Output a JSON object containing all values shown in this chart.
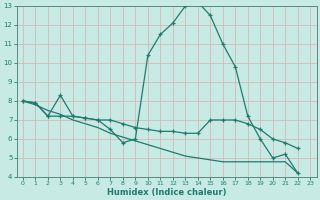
{
  "xlabel": "Humidex (Indice chaleur)",
  "xlim": [
    -0.5,
    23.5
  ],
  "ylim": [
    4,
    13
  ],
  "xticks": [
    0,
    1,
    2,
    3,
    4,
    5,
    6,
    7,
    8,
    9,
    10,
    11,
    12,
    13,
    14,
    15,
    16,
    17,
    18,
    19,
    20,
    21,
    22,
    23
  ],
  "yticks": [
    4,
    5,
    6,
    7,
    8,
    9,
    10,
    11,
    12,
    13
  ],
  "bg_color": "#c8eae4",
  "line_color": "#1e7b6e",
  "grid_color": "#d4b8b8",
  "spine_color": "#5a8a80",
  "line1_x": [
    0,
    1,
    2,
    3,
    4,
    5,
    6,
    7,
    8,
    9,
    10,
    11,
    12,
    13,
    14,
    15,
    16,
    17,
    18,
    19,
    20,
    21,
    22
  ],
  "line1_y": [
    8.0,
    7.9,
    7.2,
    8.3,
    7.2,
    7.1,
    7.0,
    6.5,
    5.8,
    6.0,
    10.4,
    11.5,
    12.1,
    13.0,
    13.2,
    12.5,
    11.0,
    9.8,
    7.2,
    6.0,
    5.0,
    5.2,
    4.2
  ],
  "line2_x": [
    0,
    1,
    2,
    3,
    4,
    5,
    6,
    7,
    8,
    9,
    10,
    11,
    12,
    13,
    14,
    15,
    16,
    17,
    18,
    19,
    20,
    21,
    22
  ],
  "line2_y": [
    8.0,
    7.9,
    7.2,
    7.2,
    7.2,
    7.1,
    7.0,
    7.0,
    6.8,
    6.6,
    6.5,
    6.4,
    6.4,
    6.3,
    6.3,
    7.0,
    7.0,
    7.0,
    6.8,
    6.5,
    6.0,
    5.8,
    5.5
  ],
  "line3_x": [
    0,
    1,
    2,
    3,
    4,
    5,
    6,
    7,
    8,
    9,
    10,
    11,
    12,
    13,
    14,
    15,
    16,
    17,
    18,
    19,
    20,
    21,
    22
  ],
  "line3_y": [
    8.0,
    7.8,
    7.5,
    7.3,
    7.0,
    6.8,
    6.6,
    6.3,
    6.1,
    5.9,
    5.7,
    5.5,
    5.3,
    5.1,
    5.0,
    4.9,
    4.8,
    4.8,
    4.8,
    4.8,
    4.8,
    4.8,
    4.2
  ]
}
